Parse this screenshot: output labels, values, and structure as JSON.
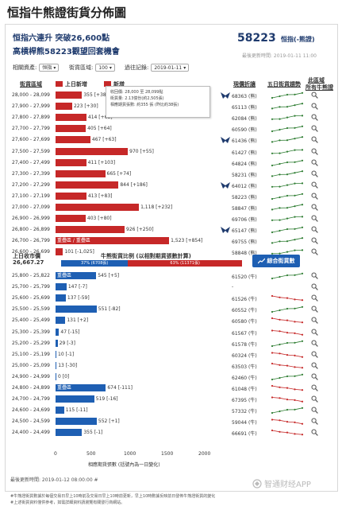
{
  "page_title": "恒指牛熊證街貨分佈圖",
  "header": {
    "headline1": "恒指六連升 突破26,600點",
    "headline2": "高槓桿熊58223觀望回套機會",
    "code": "58223",
    "code_sub": "恒指(-熊證)",
    "updated": "最後更新時間: 2019-01-11 11:00"
  },
  "controls": {
    "asset_label": "相關資產:",
    "asset_value": "恒指",
    "range_label": "街貨區域:",
    "range_value": "100",
    "date_label": "過往記錄:",
    "date_value": "2019-01-11"
  },
  "headers": {
    "range": "街貨區域",
    "bull_legend": "上日新增",
    "bear_legend": "新增",
    "warrant": "現價折讓",
    "trend": "五日街貨趨勢",
    "recommend1": "此區域",
    "recommend2": "所有牛熊證"
  },
  "tooltip": {
    "line1": "收回價: 28,000 至 28,099點",
    "line2": "街貨量: 2.13億份(約2,505張)",
    "line3": "相應期貨張數: 約355 張 (昨比約38張)"
  },
  "colors": {
    "bear": "#c62828",
    "bull": "#1e5fb3",
    "trend_green": "#2e7d32",
    "trend_red": "#c62828"
  },
  "underlying": {
    "label": "上日收市價",
    "value": "26,667.27"
  },
  "ratio": {
    "title": "牛熊街貨比例 (以相對期貨張數計算)",
    "bull_text": "37% (6708張)",
    "bull_pct": 37,
    "bear_text": "63% (11371張)",
    "bear_pct": 63
  },
  "history_button": "綜合街貨數",
  "axis": {
    "ticks": [
      0,
      500,
      1000,
      1500,
      2000
    ],
    "label": "相應期貨張數 (括號內為一日變化)"
  },
  "last_update": "最後更新時間: 2019-01-12 08:00:00 #",
  "notes": [
    "#牛熊證街貨數據於每個交易日早上10時前及交易日早上10時前更新，早上10時數據反映前日發佈牛熊證街貨的變化",
    "#上述街貨資料僅供參考，如需詳細資料請瀏覽有關發行商網站。"
  ],
  "watermark": "智通财经APP",
  "chart_data": {
    "type": "bar",
    "orientation": "horizontal",
    "xlim": [
      0,
      2000
    ],
    "xticks": [
      0,
      500,
      1000,
      1500,
      2000
    ],
    "xlabel": "相應期貨張數 (括號內為一日變化)",
    "bear_rows": [
      {
        "range": "28,000 - 28,099",
        "value": 355,
        "label": "355 [+38]",
        "code": "68363 (熊)"
      },
      {
        "range": "27,900 - 27,999",
        "value": 223,
        "label": "223 [+30]",
        "code": "65113 (熊)"
      },
      {
        "range": "27,800 - 27,899",
        "value": 414,
        "label": "414 [+63]",
        "code": "62084 (熊)"
      },
      {
        "range": "27,700 - 27,799",
        "value": 405,
        "label": "405 [+64]",
        "code": "60590 (熊)"
      },
      {
        "range": "27,600 - 27,699",
        "value": 467,
        "label": "467 [+63]",
        "code": "61436 (熊)"
      },
      {
        "range": "27,500 - 27,599",
        "value": 970,
        "label": "970 [+55]",
        "code": "61427 (熊)"
      },
      {
        "range": "27,400 - 27,499",
        "value": 411,
        "label": "411 [+103]",
        "code": "64824 (熊)"
      },
      {
        "range": "27,300 - 27,399",
        "value": 665,
        "label": "665 [+74]",
        "code": "58231 (熊)"
      },
      {
        "range": "27,200 - 27,299",
        "value": 844,
        "label": "844 [+186]",
        "code": "64012 (熊)"
      },
      {
        "range": "27,100 - 27,199",
        "value": 413,
        "label": "413 [+83]",
        "code": "58223 (熊)"
      },
      {
        "range": "27,000 - 27,099",
        "value": 1118,
        "label": "1,118 [+232]",
        "code": "58847 (熊)"
      },
      {
        "range": "26,900 - 26,999",
        "value": 403,
        "label": "403 [+80]",
        "code": "69706 (熊)"
      },
      {
        "range": "26,800 - 26,899",
        "value": 926,
        "label": "926 [+250]",
        "code": "65147 (熊)"
      },
      {
        "range": "26,700 - 26,799",
        "value": 1523,
        "label": "1,523 [+854]",
        "code": "69755 (熊)",
        "inner": "重疊區 / 重疊區"
      },
      {
        "range": "26,600 - 26,699",
        "value": 101,
        "label": "101 [-1,025]",
        "code": "58848 (熊)"
      }
    ],
    "bull_rows": [
      {
        "range": "25,800 - 25,822",
        "value": 545,
        "label": "545 [+5]",
        "code": "61520 (牛)",
        "inner": "重疊區"
      },
      {
        "range": "25,700 - 25,799",
        "value": 147,
        "label": "147 [-7]",
        "code": "-"
      },
      {
        "range": "25,600 - 25,699",
        "value": 137,
        "label": "137 [-59]",
        "code": "61526 (牛)"
      },
      {
        "range": "25,500 - 25,599",
        "value": 551,
        "label": "551 [-82]",
        "code": "60552 (牛)"
      },
      {
        "range": "25,400 - 25,499",
        "value": 131,
        "label": "131 [+2]",
        "code": "60580 (牛)"
      },
      {
        "range": "25,300 - 25,399",
        "value": 47,
        "label": "47 [-15]",
        "code": "61567 (牛)"
      },
      {
        "range": "25,200 - 25,299",
        "value": 29,
        "label": "29 [-3]",
        "code": "61578 (牛)"
      },
      {
        "range": "25,100 - 25,199",
        "value": 10,
        "label": "10 [-1]",
        "code": "60324 (牛)"
      },
      {
        "range": "25,000 - 25,099",
        "value": 13,
        "label": "13 [-30]",
        "code": "63503 (牛)"
      },
      {
        "range": "24,900 - 24,999",
        "value": 0,
        "label": "0 [0]",
        "code": "62460 (牛)"
      },
      {
        "range": "24,800 - 24,899",
        "value": 674,
        "label": "674 [-111]",
        "code": "61048 (牛)",
        "inner": "重疊區"
      },
      {
        "range": "24,700 - 24,799",
        "value": 519,
        "label": "519 [-16]",
        "code": "67395 (牛)"
      },
      {
        "range": "24,600 - 24,699",
        "value": 115,
        "label": "115 [-11]",
        "code": "57332 (牛)"
      },
      {
        "range": "24,500 - 24,599",
        "value": 552,
        "label": "552 [+1]",
        "code": "59044 (牛)"
      },
      {
        "range": "24,400 - 24,499",
        "value": 355,
        "label": "355 [-1]",
        "code": "66691 (牛)"
      }
    ]
  }
}
